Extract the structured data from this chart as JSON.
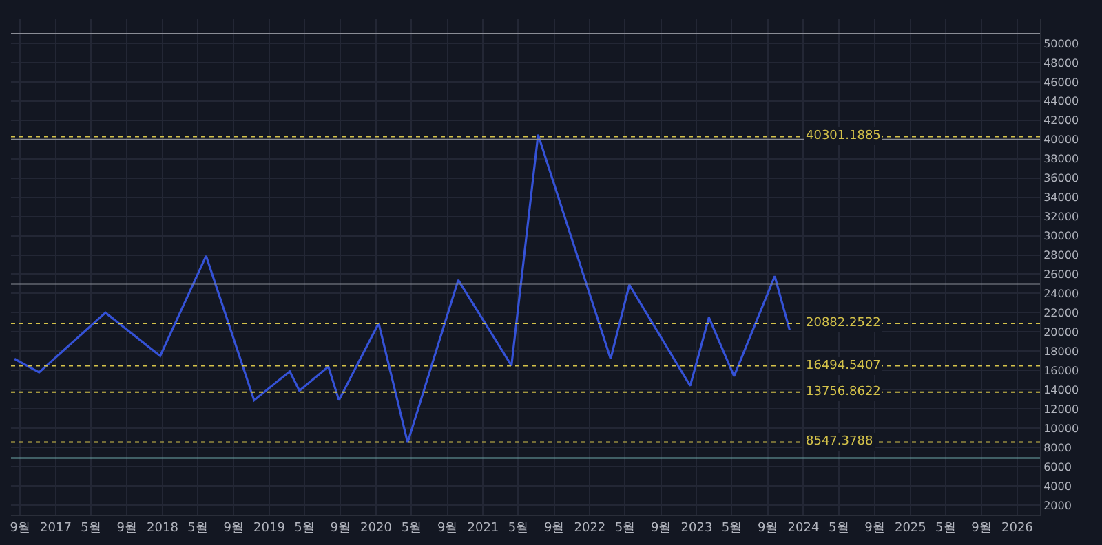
{
  "chart_data": {
    "type": "line",
    "x": [
      "2016-08-13",
      "2016-11-05",
      "2017-06-20",
      "2017-12-24",
      "2018-05-30",
      "2018-11-10",
      "2019-03-12",
      "2019-04-14",
      "2019-07-22",
      "2019-08-27",
      "2020-01-10",
      "2020-04-18",
      "2020-10-08",
      "2021-04-08",
      "2021-07-08",
      "2022-03-13",
      "2022-05-16",
      "2022-12-10",
      "2023-02-12",
      "2023-05-09",
      "2023-09-25",
      "2023-11-15"
    ],
    "series": [
      {
        "color": "#3552d6",
        "values": [
          17200,
          15800,
          22000,
          17500,
          27900,
          12900,
          15900,
          13900,
          16400,
          12900,
          20900,
          8500,
          25400,
          16500,
          40500,
          17200,
          24900,
          14400,
          21500,
          15400,
          25800,
          20200
        ]
      }
    ],
    "xlim": [
      "2016-08-01",
      "2026-03-20"
    ],
    "xticks": [
      {
        "value": "2016-09-01",
        "label": "9월"
      },
      {
        "value": "2017-01-01",
        "label": "2017"
      },
      {
        "value": "2017-05-01",
        "label": "5월"
      },
      {
        "value": "2017-09-01",
        "label": "9월"
      },
      {
        "value": "2018-01-01",
        "label": "2018"
      },
      {
        "value": "2018-05-01",
        "label": "5월"
      },
      {
        "value": "2018-09-01",
        "label": "9월"
      },
      {
        "value": "2019-01-01",
        "label": "2019"
      },
      {
        "value": "2019-05-01",
        "label": "5월"
      },
      {
        "value": "2019-09-01",
        "label": "9월"
      },
      {
        "value": "2020-01-01",
        "label": "2020"
      },
      {
        "value": "2020-05-01",
        "label": "5월"
      },
      {
        "value": "2020-09-01",
        "label": "9월"
      },
      {
        "value": "2021-01-01",
        "label": "2021"
      },
      {
        "value": "2021-05-01",
        "label": "5월"
      },
      {
        "value": "2021-09-01",
        "label": "9월"
      },
      {
        "value": "2022-01-01",
        "label": "2022"
      },
      {
        "value": "2022-05-01",
        "label": "5월"
      },
      {
        "value": "2022-09-01",
        "label": "9월"
      },
      {
        "value": "2023-01-01",
        "label": "2023"
      },
      {
        "value": "2023-05-01",
        "label": "5월"
      },
      {
        "value": "2023-09-01",
        "label": "9월"
      },
      {
        "value": "2024-01-01",
        "label": "2024"
      },
      {
        "value": "2024-05-01",
        "label": "5월"
      },
      {
        "value": "2024-09-01",
        "label": "9월"
      },
      {
        "value": "2025-01-01",
        "label": "2025"
      },
      {
        "value": "2025-05-01",
        "label": "5월"
      },
      {
        "value": "2025-09-01",
        "label": "9월"
      },
      {
        "value": "2026-01-01",
        "label": "2026"
      }
    ],
    "ylim": [
      1000,
      52500
    ],
    "yticks": [
      2000,
      4000,
      6000,
      8000,
      10000,
      12000,
      14000,
      16000,
      18000,
      20000,
      22000,
      24000,
      26000,
      28000,
      30000,
      32000,
      34000,
      36000,
      38000,
      40000,
      42000,
      44000,
      46000,
      48000,
      50000
    ],
    "grid": true,
    "marker": "none",
    "line_style": "solid",
    "ref_lines": [
      {
        "axis": "y",
        "value": 40301.1885,
        "label": "40301.1885",
        "color": "#d4c24a",
        "line_style": "dotted"
      },
      {
        "axis": "y",
        "value": 20882.2522,
        "label": "20882.2522",
        "color": "#d4c24a",
        "line_style": "dotted"
      },
      {
        "axis": "y",
        "value": 16494.5407,
        "label": "16494.5407",
        "color": "#d4c24a",
        "line_style": "dotted"
      },
      {
        "axis": "y",
        "value": 13756.8622,
        "label": "13756.8622",
        "color": "#d4c24a",
        "line_style": "dotted"
      },
      {
        "axis": "y",
        "value": 8547.3788,
        "label": "8547.3788",
        "color": "#d4c24a",
        "line_style": "dotted"
      },
      {
        "axis": "y",
        "value": 51000,
        "color": "#8a8d96",
        "line_style": "solid"
      },
      {
        "axis": "y",
        "value": 40000,
        "color": "#8a8d96",
        "line_style": "solid"
      },
      {
        "axis": "y",
        "value": 25000,
        "color": "#8a8d96",
        "line_style": "solid"
      },
      {
        "axis": "y",
        "value": 6900,
        "color": "#6fa8a8",
        "line_style": "solid"
      }
    ]
  }
}
